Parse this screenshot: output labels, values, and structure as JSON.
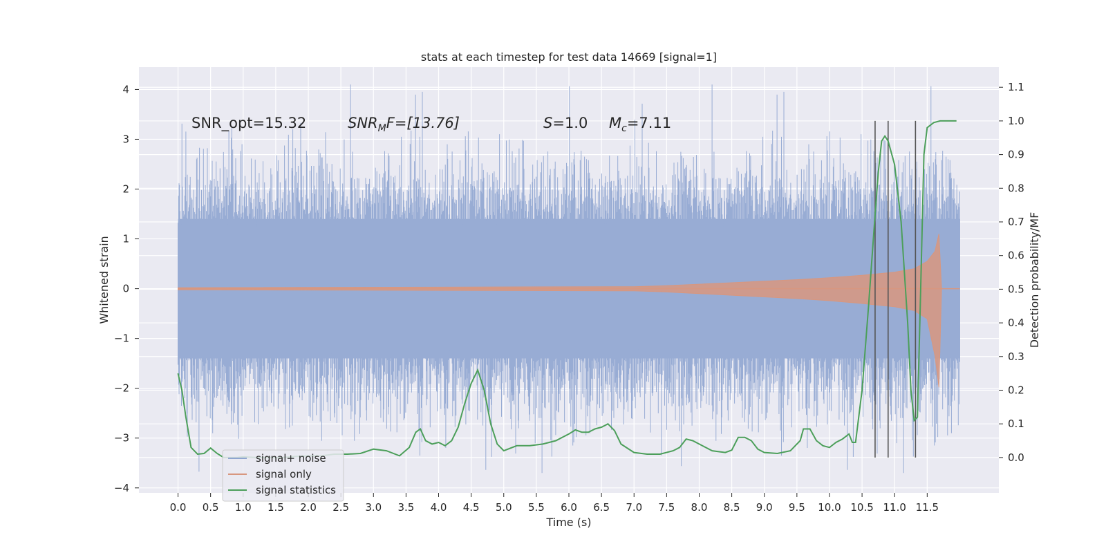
{
  "chart_data": {
    "type": "line",
    "title": "stats at each timestep for test data 14669 [signal=1]",
    "xlabel": "Time (s)",
    "ylabel": "Whitened strain",
    "y2label": "Detection probability/MF",
    "xlim": [
      -0.6,
      12.6
    ],
    "ylim": [
      -4.1,
      4.45
    ],
    "y2lim": [
      -0.105,
      1.16
    ],
    "grid": true,
    "legend_position": "lower-left",
    "x_ticks": [
      "0.0",
      "0.5",
      "1.0",
      "1.5",
      "2.0",
      "2.5",
      "3.0",
      "3.5",
      "4.0",
      "4.5",
      "5.0",
      "5.5",
      "6.0",
      "6.5",
      "7.0",
      "7.5",
      "8.0",
      "8.5",
      "9.0",
      "9.5",
      "10.0",
      "10.5",
      "11.0",
      "11.5"
    ],
    "y_ticks": [
      "4",
      "3",
      "2",
      "1",
      "0",
      "−1",
      "−2",
      "−3",
      "−4"
    ],
    "y2_ticks": [
      "1.1",
      "1.0",
      "0.9",
      "0.8",
      "0.7",
      "0.6",
      "0.5",
      "0.4",
      "0.3",
      "0.2",
      "0.1",
      "0.0"
    ],
    "annotations": {
      "snr_opt": "SNR_opt=15.32",
      "snr_mf_sym": "SNR",
      "snr_mf_sub": "M",
      "snr_mf_rest": "F=[13.76]",
      "s_sym": "S",
      "s_rest": "=1.0",
      "mc_sym": "M",
      "mc_sub": "c",
      "mc_rest": "=7.11"
    },
    "series": [
      {
        "name": "signal+ noise",
        "color": "#8fa5d0",
        "x_range": [
          0.0,
          12.0
        ],
        "approx_abs_bulk": 1.4,
        "approx_extremes": [
          4.1,
          -3.7
        ]
      },
      {
        "name": "signal only",
        "color": "#d8977f",
        "envelope_x": [
          0.0,
          7.0,
          7.5,
          8.0,
          8.5,
          9.0,
          9.5,
          10.0,
          10.5,
          11.0,
          11.3,
          11.5,
          11.62,
          11.68,
          11.72,
          12.0
        ],
        "envelope_y": [
          0.02,
          0.04,
          0.06,
          0.09,
          0.12,
          0.15,
          0.18,
          0.22,
          0.27,
          0.33,
          0.4,
          0.55,
          0.75,
          1.1,
          0.0,
          0.0
        ]
      },
      {
        "name": "signal statistics",
        "color": "#4c9f5a",
        "x": [
          0.0,
          0.06,
          0.12,
          0.2,
          0.3,
          0.4,
          0.5,
          0.6,
          0.7,
          0.8,
          0.9,
          1.0,
          1.2,
          1.4,
          1.6,
          1.8,
          2.0,
          2.2,
          2.4,
          2.6,
          2.8,
          3.0,
          3.2,
          3.4,
          3.55,
          3.65,
          3.72,
          3.8,
          3.9,
          4.0,
          4.1,
          4.2,
          4.3,
          4.4,
          4.5,
          4.6,
          4.7,
          4.8,
          4.9,
          5.0,
          5.2,
          5.4,
          5.6,
          5.8,
          6.0,
          6.1,
          6.2,
          6.3,
          6.4,
          6.5,
          6.6,
          6.7,
          6.8,
          7.0,
          7.2,
          7.4,
          7.6,
          7.7,
          7.8,
          7.9,
          8.0,
          8.2,
          8.4,
          8.5,
          8.6,
          8.7,
          8.8,
          8.9,
          9.0,
          9.2,
          9.4,
          9.55,
          9.6,
          9.7,
          9.8,
          9.9,
          10.0,
          10.1,
          10.2,
          10.3,
          10.35,
          10.4,
          10.5,
          10.6,
          10.7,
          10.75,
          10.8,
          10.85,
          10.9,
          11.0,
          11.1,
          11.2,
          11.25,
          11.3,
          11.35,
          11.4,
          11.45,
          11.5,
          11.6,
          11.7,
          11.8,
          11.95
        ],
        "y": [
          0.25,
          0.2,
          0.12,
          0.03,
          0.01,
          0.012,
          0.028,
          0.012,
          0.0,
          0.0,
          0.0,
          0.002,
          0.0,
          0.0,
          0.0,
          0.003,
          0.005,
          0.005,
          0.01,
          0.01,
          0.012,
          0.025,
          0.02,
          0.005,
          0.03,
          0.075,
          0.085,
          0.05,
          0.04,
          0.045,
          0.035,
          0.05,
          0.09,
          0.16,
          0.22,
          0.26,
          0.2,
          0.1,
          0.04,
          0.02,
          0.035,
          0.035,
          0.04,
          0.05,
          0.07,
          0.082,
          0.075,
          0.075,
          0.085,
          0.09,
          0.1,
          0.08,
          0.04,
          0.015,
          0.01,
          0.01,
          0.02,
          0.03,
          0.055,
          0.05,
          0.04,
          0.02,
          0.015,
          0.022,
          0.06,
          0.06,
          0.05,
          0.025,
          0.015,
          0.012,
          0.02,
          0.05,
          0.085,
          0.085,
          0.05,
          0.035,
          0.03,
          0.045,
          0.055,
          0.07,
          0.045,
          0.045,
          0.2,
          0.45,
          0.72,
          0.85,
          0.94,
          0.955,
          0.94,
          0.87,
          0.7,
          0.4,
          0.2,
          0.11,
          0.12,
          0.5,
          0.9,
          0.98,
          0.995,
          1.0,
          1.0,
          1.0
        ]
      }
    ],
    "vertical_lines_x": [
      10.7,
      10.9,
      11.32
    ]
  }
}
